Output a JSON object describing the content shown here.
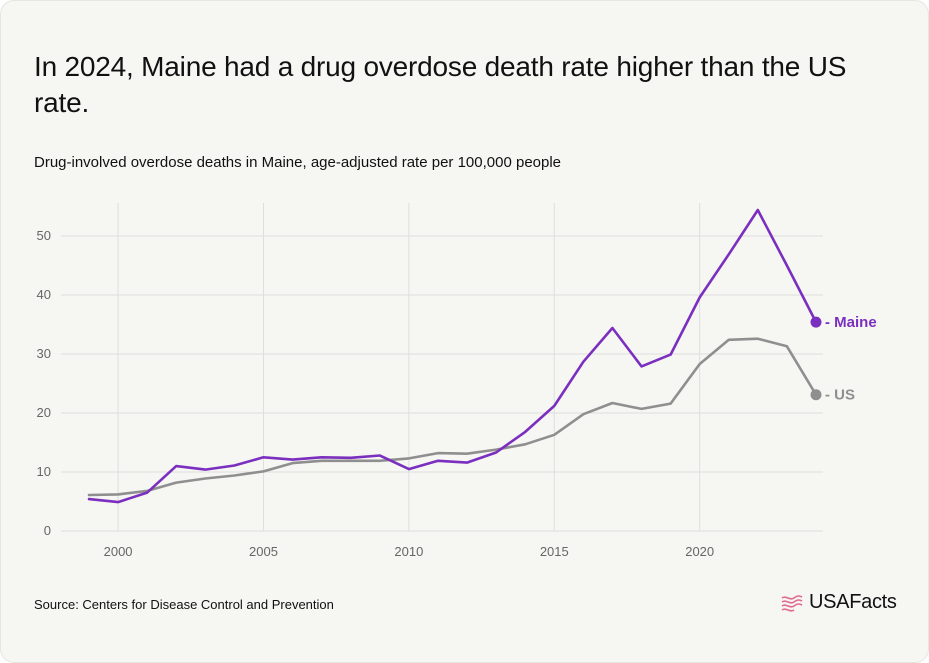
{
  "title": "In 2024, Maine had a drug overdose death rate higher than the US rate.",
  "subtitle": "Drug-involved overdose deaths in Maine, age-adjusted rate per 100,000 people",
  "source": "Source: Centers for Disease Control and Prevention",
  "brand": "USAFacts",
  "colors": {
    "maine": "#7b2fbf",
    "us": "#8f8f8f",
    "grid": "#dedede",
    "axis_text": "#666666"
  },
  "chart_data": {
    "type": "line",
    "title": "In 2024, Maine had a drug overdose death rate higher than the US rate.",
    "subtitle": "Drug-involved overdose deaths in Maine, age-adjusted rate per 100,000 people",
    "xlabel": "",
    "ylabel": "",
    "xlim": [
      1999,
      2024
    ],
    "ylim": [
      0,
      55
    ],
    "x_ticks": [
      2000,
      2005,
      2010,
      2015,
      2020
    ],
    "y_ticks": [
      0,
      10,
      20,
      30,
      40,
      50
    ],
    "grid": true,
    "legend": "end-of-line labels",
    "x": [
      1999,
      2000,
      2001,
      2002,
      2003,
      2004,
      2005,
      2006,
      2007,
      2008,
      2009,
      2010,
      2011,
      2012,
      2013,
      2014,
      2015,
      2016,
      2017,
      2018,
      2019,
      2020,
      2021,
      2022,
      2023,
      2024
    ],
    "series": [
      {
        "name": "Maine",
        "values": [
          5.4,
          4.9,
          6.5,
          11.0,
          10.4,
          11.1,
          12.5,
          12.1,
          12.5,
          12.4,
          12.8,
          10.5,
          11.9,
          11.6,
          13.3,
          16.8,
          21.2,
          28.7,
          34.4,
          27.9,
          29.9,
          39.6,
          46.9,
          54.4,
          45.0,
          35.4
        ]
      },
      {
        "name": "US",
        "values": [
          6.1,
          6.2,
          6.8,
          8.2,
          8.9,
          9.4,
          10.1,
          11.5,
          11.9,
          11.9,
          11.9,
          12.3,
          13.2,
          13.1,
          13.8,
          14.7,
          16.3,
          19.8,
          21.7,
          20.7,
          21.6,
          28.3,
          32.4,
          32.6,
          31.3,
          23.1
        ]
      }
    ]
  }
}
